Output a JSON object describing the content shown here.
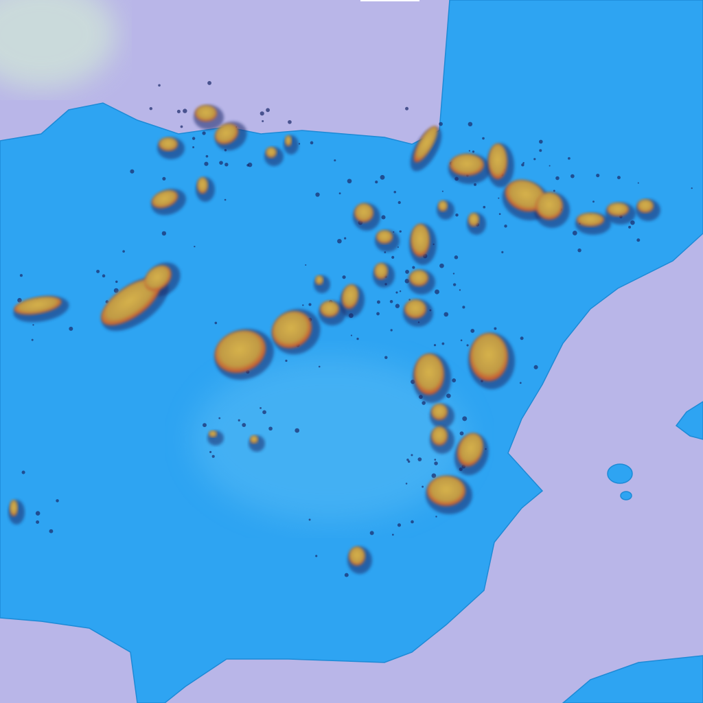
{
  "image": {
    "kind": "satellite-false-color",
    "colors": {
      "sea": "#b9b6e8",
      "land": "#2ea4f2",
      "land_light": "#58bcf5",
      "cloud": "#c9a24a",
      "cloud_edge": "#c8482c",
      "cloud_shadow": "#1a2a6a",
      "haze": "#cfe3d8",
      "top_marker": "#ffffff"
    }
  }
}
